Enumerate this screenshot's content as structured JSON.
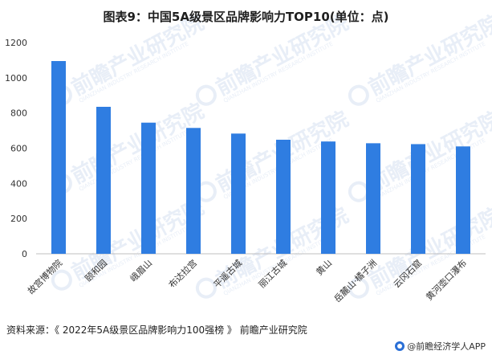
{
  "chart_data": {
    "type": "bar",
    "title": "图表9：中国5A级景区品牌影响力TOP10(单位：点)",
    "categories": [
      "故宫博物院",
      "颐和园",
      "峨眉山",
      "布达拉宫",
      "平遥古城",
      "丽江古城",
      "黄山",
      "岳麓山·橘子洲",
      "云冈石窟",
      "黄河壶口瀑布"
    ],
    "values": [
      1095,
      835,
      745,
      715,
      683,
      648,
      638,
      628,
      623,
      610
    ],
    "ylim": [
      0,
      1200
    ],
    "yticks": [
      0,
      200,
      400,
      600,
      800,
      1000,
      1200
    ],
    "bar_color": "#2f7de1",
    "grid": false
  },
  "watermark": {
    "text": "前瞻产业研究院",
    "sub": "QIANZHAN INDUSTRY RESEARCH INSTITUTE"
  },
  "footer": {
    "source": "资料来源：《 2022年5A级景区品牌影响力100强榜 》 前瞻产业研究院",
    "brand": "@前瞻经济学人APP"
  }
}
